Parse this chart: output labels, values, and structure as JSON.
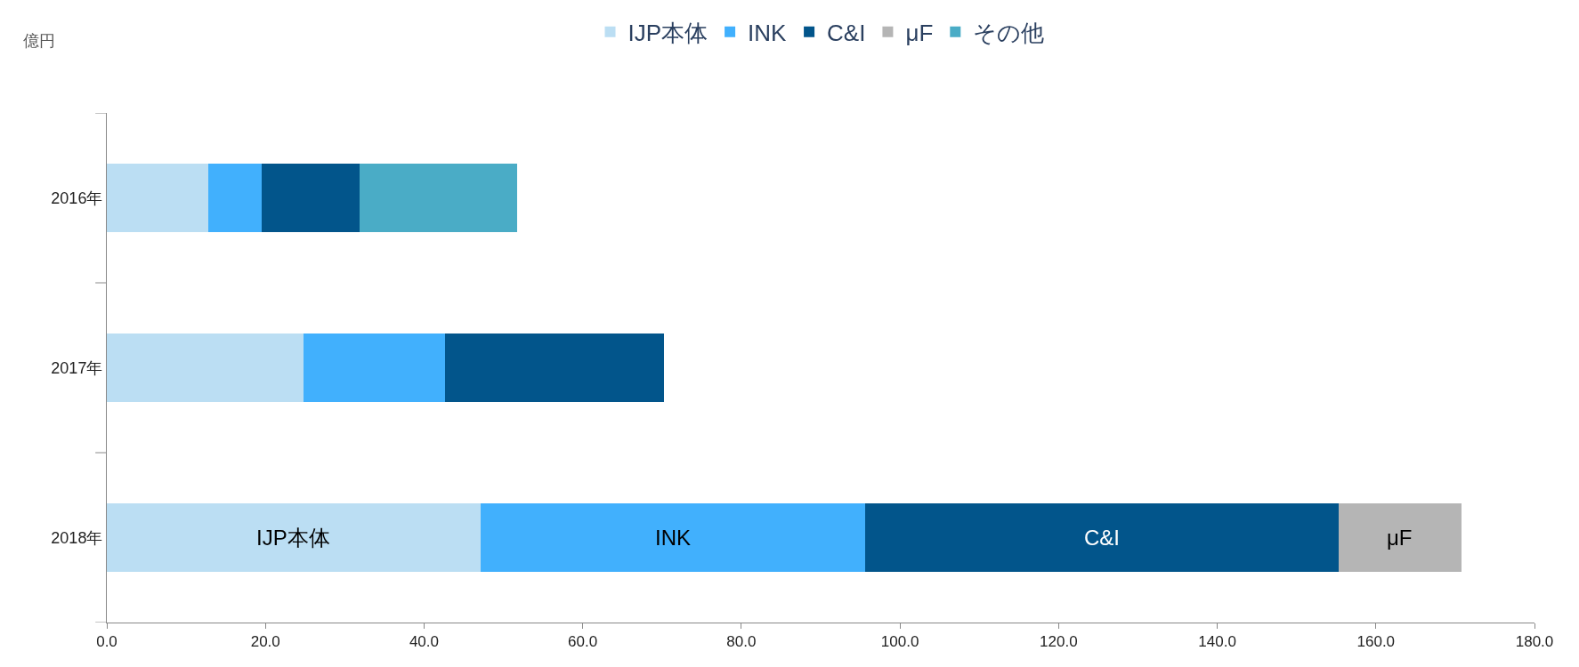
{
  "chart_data": {
    "type": "bar",
    "orientation": "horizontal",
    "stacked": true,
    "ylabel": "億円",
    "categories": [
      "2016年",
      "2017年",
      "2018年"
    ],
    "series": [
      {
        "name": "IJP本体",
        "color": "#bbdef3",
        "values": [
          12.8,
          24.8,
          47.1
        ]
      },
      {
        "name": "INK",
        "color": "#41b0fd",
        "values": [
          6.7,
          17.8,
          48.5
        ]
      },
      {
        "name": "C&I",
        "color": "#02558b",
        "values": [
          12.4,
          27.6,
          59.7
        ]
      },
      {
        "name": "μF",
        "color": "#b5b5b5",
        "values": [
          null,
          null,
          15.5
        ]
      },
      {
        "name": "その他",
        "color": "#4aacc6",
        "values": [
          19.8,
          null,
          null
        ]
      }
    ],
    "annotations": [
      "IJP本体",
      "INK",
      "C&I",
      "μF"
    ],
    "xlim": [
      0,
      180
    ],
    "xticks": [
      {
        "value": 0,
        "label": "0.0"
      },
      {
        "value": 20,
        "label": "20.0"
      },
      {
        "value": 40,
        "label": "40.0"
      },
      {
        "value": 60,
        "label": "60.0"
      },
      {
        "value": 80,
        "label": "80.0"
      },
      {
        "value": 100,
        "label": "100.0"
      },
      {
        "value": 120,
        "label": "120.0"
      },
      {
        "value": 140,
        "label": "140.0"
      },
      {
        "value": 160,
        "label": "160.0"
      },
      {
        "value": 180,
        "label": "180.0"
      }
    ],
    "legend": "top"
  }
}
